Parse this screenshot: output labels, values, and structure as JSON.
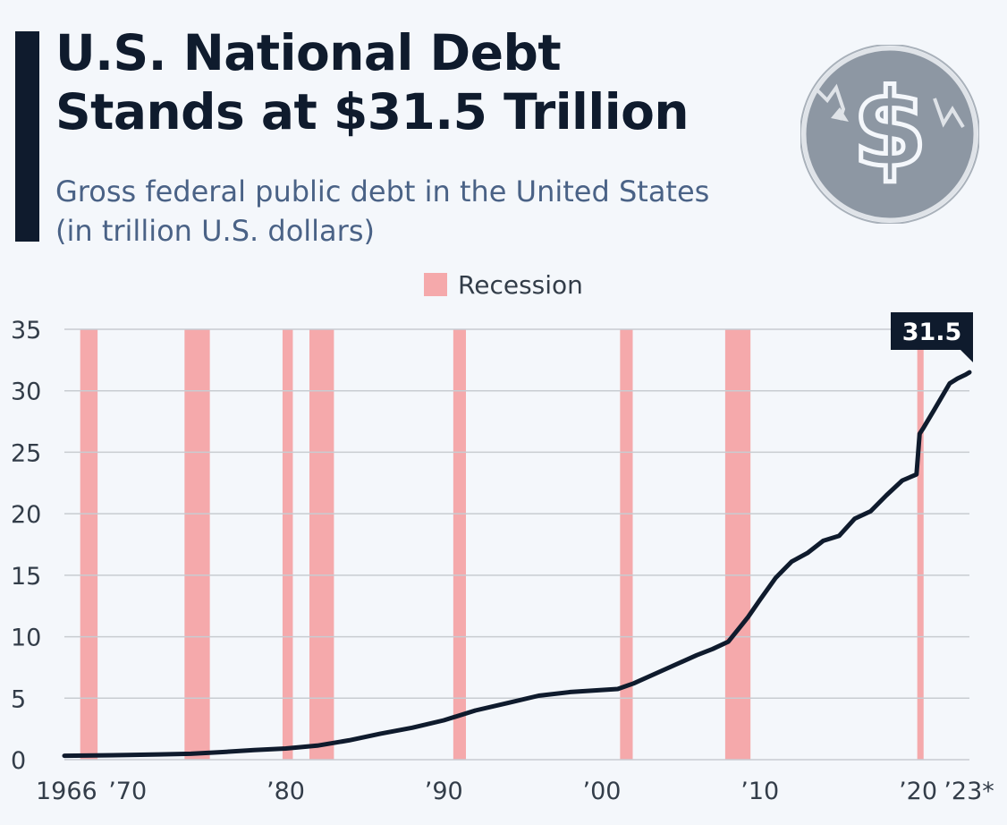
{
  "header": {
    "title_line1": "U.S. National Debt",
    "title_line2": "Stands at $31.5 Trillion",
    "subtitle_line1": "Gross federal public debt in the United States",
    "subtitle_line2": "(in trillion U.S. dollars)"
  },
  "legend": {
    "recession_label": "Recession"
  },
  "colors": {
    "title": "#0f1b2d",
    "subtitle": "#4a6286",
    "line": "#0f1b2d",
    "recession": "#f5a9ab",
    "grid": "#c8ccd1",
    "logo_bg": "#8d97a3"
  },
  "chart_data": {
    "type": "line",
    "title": "U.S. National Debt Stands at $31.5 Trillion",
    "xlabel": "",
    "ylabel": "Gross federal public debt (trillion U.S. dollars)",
    "xlim": [
      1966,
      2023.25
    ],
    "ylim": [
      0,
      35
    ],
    "yticks": [
      0,
      5,
      10,
      15,
      20,
      25,
      30,
      35
    ],
    "xticks": [
      {
        "value": 1966,
        "label": "1966"
      },
      {
        "value": 1970,
        "label": "’70"
      },
      {
        "value": 1980,
        "label": "’80"
      },
      {
        "value": 1990,
        "label": "’90"
      },
      {
        "value": 2000,
        "label": "’00"
      },
      {
        "value": 2010,
        "label": "’10"
      },
      {
        "value": 2020,
        "label": "’20"
      },
      {
        "value": 2023,
        "label": "’23*"
      }
    ],
    "recessions": [
      {
        "start": 1967.0,
        "end": 1968.1
      },
      {
        "start": 1973.6,
        "end": 1975.2
      },
      {
        "start": 1979.8,
        "end": 1980.45
      },
      {
        "start": 1981.5,
        "end": 1983.05
      },
      {
        "start": 1990.6,
        "end": 1991.4
      },
      {
        "start": 2001.15,
        "end": 2001.95
      },
      {
        "start": 2007.8,
        "end": 2009.4
      },
      {
        "start": 2019.95,
        "end": 2020.35
      }
    ],
    "series": [
      {
        "name": "Gross federal public debt",
        "x": [
          1966,
          1968,
          1970,
          1972,
          1974,
          1976,
          1978,
          1980,
          1982,
          1984,
          1986,
          1988,
          1990,
          1992,
          1994,
          1996,
          1998,
          2000,
          2001,
          2002,
          2004,
          2006,
          2007,
          2008,
          2008.75,
          2009.25,
          2010,
          2011,
          2012,
          2013,
          2014,
          2015,
          2016,
          2017,
          2018,
          2019,
          2019.9,
          2020.1,
          2020.3,
          2021,
          2022,
          2022.5,
          2023,
          2023.25
        ],
        "values": [
          0.32,
          0.35,
          0.38,
          0.43,
          0.48,
          0.62,
          0.78,
          0.91,
          1.14,
          1.57,
          2.12,
          2.6,
          3.2,
          4.0,
          4.6,
          5.2,
          5.5,
          5.67,
          5.75,
          6.2,
          7.35,
          8.5,
          9.0,
          9.6,
          10.8,
          11.6,
          13.0,
          14.8,
          16.1,
          16.8,
          17.8,
          18.2,
          19.6,
          20.2,
          21.5,
          22.7,
          23.2,
          26.5,
          26.9,
          28.4,
          30.6,
          31.0,
          31.3,
          31.5
        ]
      }
    ],
    "annotations": [
      {
        "x": 2023.25,
        "y": 31.5,
        "label": "31.5"
      }
    ]
  }
}
